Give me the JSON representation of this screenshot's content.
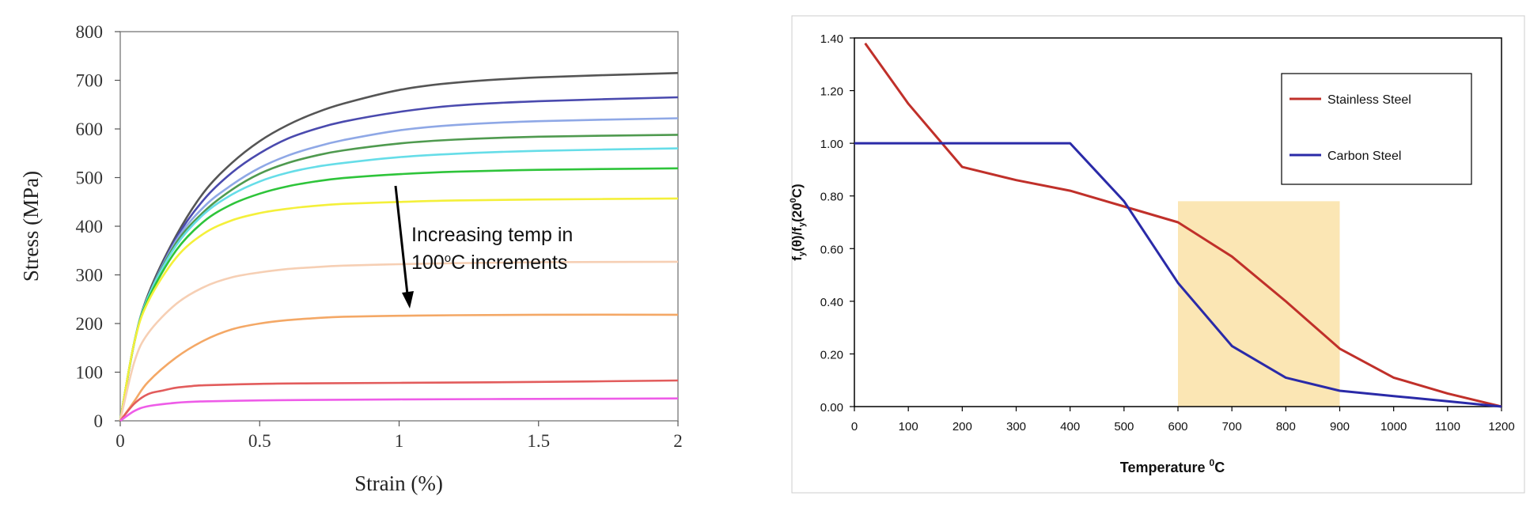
{
  "chart_data": [
    {
      "type": "line",
      "title": "",
      "xlabel": "Strain (%)",
      "ylabel": "Stress (MPa)",
      "xlim": [
        0,
        2
      ],
      "ylim": [
        0,
        800
      ],
      "xticks": [
        "0",
        "0.5",
        "1",
        "1.5",
        "2"
      ],
      "yticks": [
        "0",
        "100",
        "200",
        "300",
        "400",
        "500",
        "600",
        "700",
        "800"
      ],
      "annotation": {
        "line1": "Increasing temp in",
        "line2_prefix": "100",
        "line2_super": "o",
        "line2_suffix": "C increments"
      },
      "series": [
        {
          "color": "#555555",
          "x": [
            0,
            0.05,
            0.1,
            0.2,
            0.3,
            0.4,
            0.5,
            0.6,
            0.7,
            0.8,
            1.0,
            1.2,
            1.5,
            2.0
          ],
          "y": [
            0,
            160,
            260,
            380,
            470,
            530,
            575,
            608,
            633,
            652,
            680,
            695,
            706,
            715
          ]
        },
        {
          "color": "#4a4aae",
          "x": [
            0,
            0.05,
            0.1,
            0.2,
            0.3,
            0.4,
            0.5,
            0.6,
            0.7,
            0.8,
            1.0,
            1.2,
            1.5,
            2.0
          ],
          "y": [
            0,
            160,
            255,
            375,
            455,
            510,
            550,
            580,
            600,
            615,
            635,
            648,
            657,
            665
          ]
        },
        {
          "color": "#8fa8e6",
          "x": [
            0,
            0.05,
            0.1,
            0.2,
            0.3,
            0.4,
            0.5,
            0.6,
            0.7,
            0.8,
            1.0,
            1.2,
            1.5,
            2.0
          ],
          "y": [
            0,
            160,
            255,
            370,
            440,
            485,
            520,
            545,
            563,
            577,
            597,
            608,
            616,
            622
          ]
        },
        {
          "color": "#4f9a4f",
          "x": [
            0,
            0.05,
            0.1,
            0.2,
            0.3,
            0.4,
            0.5,
            0.6,
            0.7,
            0.8,
            1.0,
            1.2,
            1.5,
            2.0
          ],
          "y": [
            0,
            160,
            255,
            365,
            430,
            475,
            508,
            530,
            545,
            556,
            570,
            578,
            584,
            588
          ]
        },
        {
          "color": "#66dde8",
          "x": [
            0,
            0.05,
            0.1,
            0.2,
            0.3,
            0.4,
            0.5,
            0.6,
            0.7,
            0.8,
            1.0,
            1.2,
            1.5,
            2.0
          ],
          "y": [
            0,
            160,
            255,
            360,
            425,
            465,
            492,
            510,
            522,
            530,
            542,
            549,
            555,
            560
          ]
        },
        {
          "color": "#2ec43a",
          "x": [
            0,
            0.05,
            0.1,
            0.2,
            0.3,
            0.4,
            0.5,
            0.6,
            0.7,
            0.8,
            1.0,
            1.2,
            1.5,
            2.0
          ],
          "y": [
            0,
            160,
            250,
            350,
            410,
            445,
            467,
            482,
            492,
            499,
            507,
            512,
            516,
            519
          ]
        },
        {
          "color": "#f4f03a",
          "x": [
            0,
            0.05,
            0.1,
            0.2,
            0.3,
            0.4,
            0.5,
            0.6,
            0.7,
            0.8,
            1.0,
            1.2,
            1.5,
            2.0
          ],
          "y": [
            0,
            160,
            245,
            335,
            385,
            412,
            427,
            436,
            442,
            446,
            450,
            453,
            455,
            457
          ]
        },
        {
          "color": "#f6cfb4",
          "x": [
            0,
            0.05,
            0.1,
            0.2,
            0.3,
            0.4,
            0.5,
            0.6,
            0.7,
            0.8,
            1.0,
            1.2,
            1.5,
            2.0
          ],
          "y": [
            0,
            120,
            180,
            240,
            275,
            295,
            305,
            312,
            316,
            319,
            322,
            324,
            326,
            327
          ]
        },
        {
          "color": "#f4a866",
          "x": [
            0,
            0.05,
            0.1,
            0.2,
            0.3,
            0.4,
            0.5,
            0.6,
            0.7,
            0.8,
            1.0,
            1.2,
            1.5,
            2.0
          ],
          "y": [
            0,
            40,
            80,
            130,
            165,
            188,
            200,
            207,
            211,
            214,
            216,
            217,
            218,
            218
          ]
        },
        {
          "color": "#e25c5c",
          "x": [
            0,
            0.05,
            0.1,
            0.15,
            0.2,
            0.25,
            0.3,
            0.5,
            0.7,
            1.0,
            1.5,
            2.0
          ],
          "y": [
            0,
            35,
            55,
            62,
            68,
            71,
            73,
            76,
            77,
            78,
            80,
            83
          ]
        },
        {
          "color": "#ee5ce8",
          "x": [
            0,
            0.05,
            0.1,
            0.2,
            0.3,
            0.5,
            0.7,
            1.0,
            1.5,
            2.0
          ],
          "y": [
            0,
            20,
            30,
            37,
            40,
            42,
            43,
            44,
            45,
            46
          ]
        }
      ]
    },
    {
      "type": "line",
      "title": "",
      "xlabel_prefix": "Temperature ",
      "xlabel_super": "0",
      "xlabel_suffix": "C",
      "ylabel_parts": [
        "f",
        "y",
        "(θ)/f",
        "y",
        "(20",
        "0",
        "C)"
      ],
      "xlim": [
        0,
        1200
      ],
      "ylim": [
        0,
        1.4
      ],
      "xticks": [
        "0",
        "100",
        "200",
        "300",
        "400",
        "500",
        "600",
        "700",
        "800",
        "900",
        "1000",
        "1100",
        "1200"
      ],
      "yticks": [
        "0.00",
        "0.20",
        "0.40",
        "0.60",
        "0.80",
        "1.00",
        "1.20",
        "1.40"
      ],
      "highlight": {
        "x": [
          600,
          900
        ],
        "y": [
          0,
          0.78
        ],
        "color": "#fbe6b4"
      },
      "legend_position": "top-right",
      "series": [
        {
          "name": "Stainless Steel",
          "color": "#c0302a",
          "x": [
            20,
            100,
            200,
            300,
            400,
            500,
            600,
            700,
            800,
            900,
            1000,
            1100,
            1200
          ],
          "y": [
            1.38,
            1.15,
            0.91,
            0.86,
            0.82,
            0.76,
            0.7,
            0.57,
            0.4,
            0.22,
            0.11,
            0.05,
            0.0
          ]
        },
        {
          "name": "Carbon Steel",
          "color": "#2a2aa8",
          "x": [
            0,
            100,
            200,
            300,
            400,
            500,
            600,
            700,
            800,
            900,
            1000,
            1100,
            1200
          ],
          "y": [
            1.0,
            1.0,
            1.0,
            1.0,
            1.0,
            0.78,
            0.47,
            0.23,
            0.11,
            0.06,
            0.04,
            0.02,
            0.0
          ]
        }
      ]
    }
  ]
}
